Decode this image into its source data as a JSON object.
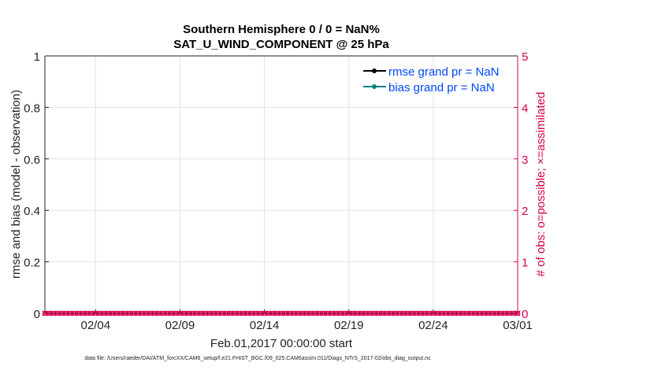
{
  "chart_data": {
    "type": "line",
    "title": [
      "Southern Hemisphere 0 / 0 = NaN%",
      "SAT_U_WIND_COMPONENT @ 25 hPa"
    ],
    "xlabel": "Feb.01,2017 00:00:00 start",
    "ylabel": "rmse and bias (model - observation)",
    "ylabel_right": "# of obs: o=possible; ×=assimilated",
    "xlim": [
      "2017-02-01",
      "2017-03-01"
    ],
    "ylim": [
      0,
      1
    ],
    "ylim_right": [
      0,
      5
    ],
    "x_ticks": [
      "02/04",
      "02/09",
      "02/14",
      "02/19",
      "02/24",
      "03/01"
    ],
    "x_tick_days": [
      3,
      8,
      13,
      18,
      23,
      28
    ],
    "y_ticks": [
      "0",
      "0.2",
      "0.4",
      "0.6",
      "0.8",
      "1"
    ],
    "y_ticks_right": [
      "0",
      "1",
      "2",
      "3",
      "4",
      "5"
    ],
    "grid": true,
    "legend_position": "top-right",
    "series": [
      {
        "name": "rmse grand pr = NaN",
        "color": "#000000",
        "values": []
      },
      {
        "name": "bias grand pr = NaN",
        "color": "#008080",
        "values": []
      },
      {
        "name": "obs possible",
        "color": "#D6004F",
        "marker": "o",
        "interval_hours": 6,
        "value": 0
      },
      {
        "name": "obs assimilated",
        "color": "#D6004F",
        "marker": "x",
        "interval_hours": 6,
        "value": 0
      }
    ],
    "legend_text_color": "#0047FF",
    "right_axis_color": "#D6004F"
  },
  "footer": "data file: /Users/raeder/DAI/ATM_forcXX/CAM6_setup/f.e21.FHIST_BGC.f09_025.CAM6assim.011/Diags_NTrS_2017-02/obs_diag_output.nc"
}
